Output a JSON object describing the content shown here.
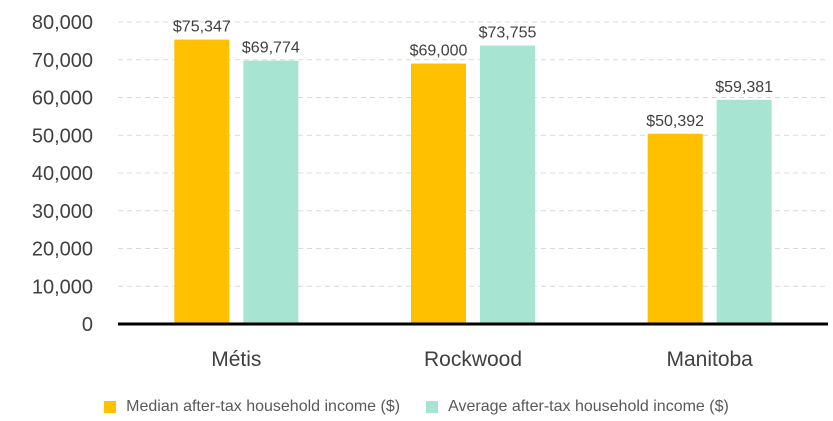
{
  "chart_data": {
    "type": "bar",
    "categories": [
      "Métis",
      "Rockwood",
      "Manitoba"
    ],
    "series": [
      {
        "name": "Median after-tax household income ($)",
        "values": [
          75347,
          69000,
          50392
        ],
        "labels": [
          "$75,347",
          "$69,000",
          "$50,392"
        ],
        "color": "#FFC000"
      },
      {
        "name": "Average after-tax household income ($)",
        "values": [
          69774,
          73755,
          59381
        ],
        "labels": [
          "$69,774",
          "$73,755",
          "$59,381"
        ],
        "color": "#A8E4D2"
      }
    ],
    "ylim": [
      0,
      80000
    ],
    "yticks": [
      0,
      10000,
      20000,
      30000,
      40000,
      50000,
      60000,
      70000,
      80000
    ],
    "ytick_labels": [
      "0",
      "10,000",
      "20,000",
      "30,000",
      "40,000",
      "50,000",
      "60,000",
      "70,000",
      "80,000"
    ],
    "grid": "horizontal-dashed",
    "legend_position": "bottom",
    "axis_color": "#000000",
    "grid_color": "#D9D9D9"
  }
}
